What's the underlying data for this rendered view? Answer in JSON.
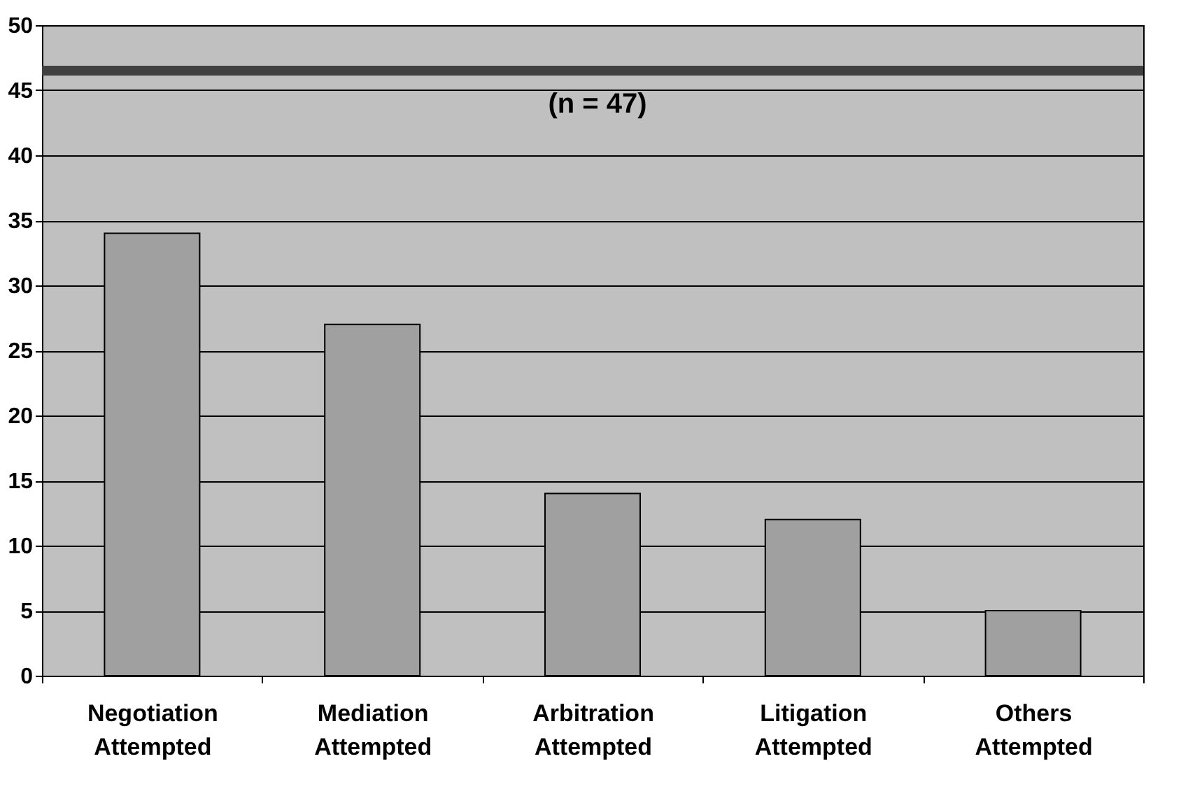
{
  "chart_data": {
    "type": "bar",
    "categories": [
      "Negotiation Attempted",
      "Mediation Attempted",
      "Arbitration Attempted",
      "Litigation Attempted",
      "Others Attempted"
    ],
    "values": [
      34,
      27,
      14,
      12,
      5
    ],
    "color": "#a0a0a0",
    "ylim": [
      0,
      50
    ],
    "yticks": [
      0,
      5,
      10,
      15,
      20,
      25,
      30,
      35,
      40,
      45,
      50
    ],
    "grid": "y",
    "ref_lines": [
      {
        "axis": "y",
        "value": 46.5,
        "label": "(n = 47)",
        "color": "#404040"
      }
    ]
  }
}
